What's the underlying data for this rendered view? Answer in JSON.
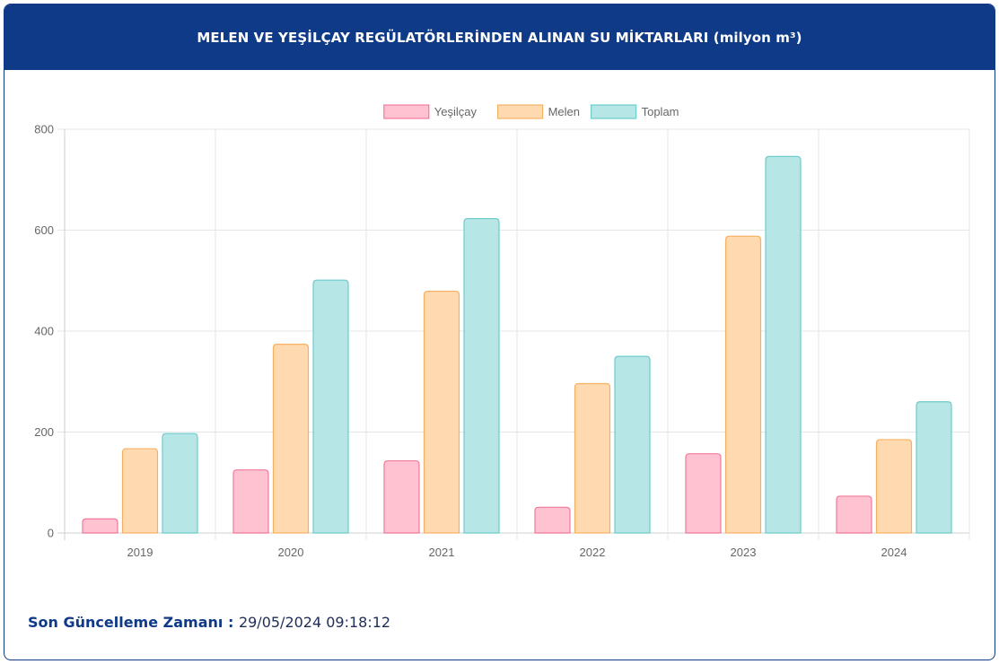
{
  "header": {
    "title": "MELEN VE YEŞİLÇAY REGÜLATÖRLERİNDEN ALINAN SU MİKTARLARI (milyon m³)"
  },
  "footer": {
    "label": "Son Güncelleme Zamanı",
    "separator": " : ",
    "value": "29/05/2024 09:18:12"
  },
  "colors": {
    "header_bg": "#0e3a87",
    "yesilcay_fill": "#ffc2d1",
    "yesilcay_stroke": "#f07a9b",
    "melen_fill": "#ffd9b0",
    "melen_stroke": "#f5b264",
    "toplam_fill": "#b6e6e6",
    "toplam_stroke": "#6ccccc"
  },
  "chart_data": {
    "type": "bar",
    "categories": [
      "2019",
      "2020",
      "2021",
      "2022",
      "2023",
      "2024"
    ],
    "series": [
      {
        "name": "Yeşilçay",
        "values": [
          28,
          125,
          143,
          51,
          157,
          73
        ]
      },
      {
        "name": "Melen",
        "values": [
          167,
          374,
          479,
          296,
          588,
          185
        ]
      },
      {
        "name": "Toplam",
        "values": [
          197,
          501,
          623,
          350,
          746,
          260
        ]
      }
    ],
    "ylim": [
      0,
      800
    ],
    "yticks": [
      "0",
      "200",
      "400",
      "600",
      "800"
    ],
    "grid": true,
    "legend": "top-center"
  }
}
